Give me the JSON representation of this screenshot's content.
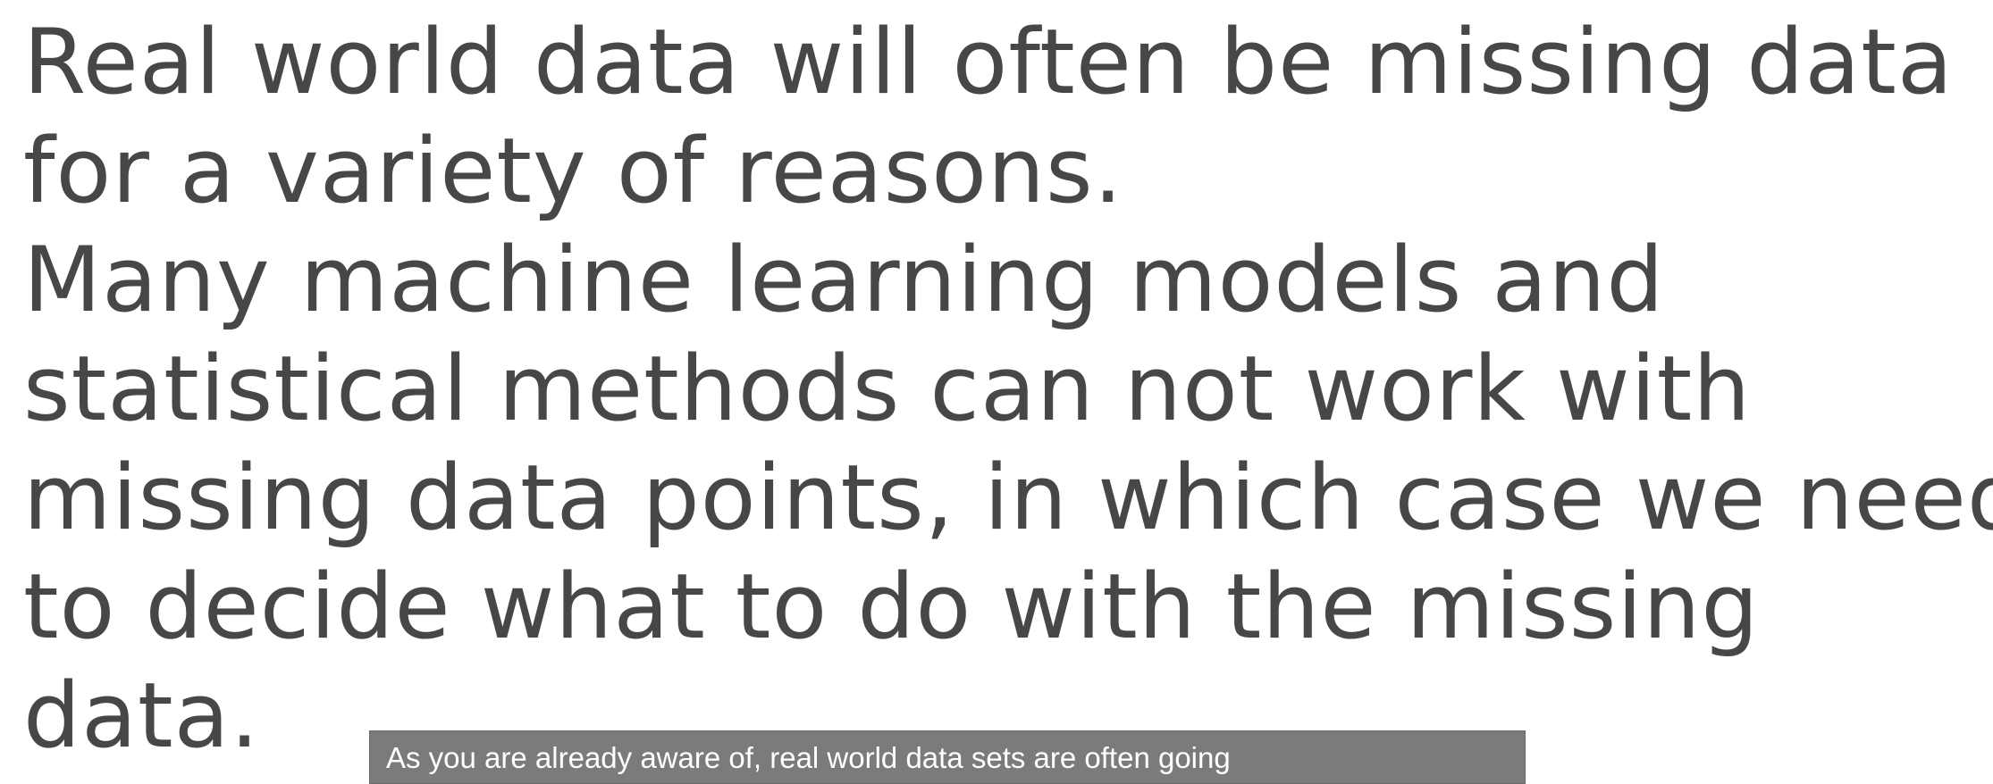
{
  "slide": {
    "paragraph_1": "Real world data will often be missing data\nfor a variety of reasons.",
    "paragraph_2": "Many machine learning models and\nstatistical methods can not work with\nmissing data points, in which case we need\nto decide what to do with the missing\ndata."
  },
  "caption": {
    "text": "As you are already aware of, real world data sets are often going"
  },
  "colors": {
    "text": "#474747",
    "background": "#ffffff",
    "caption_background": "#7b7b7b",
    "caption_text": "#ffffff"
  }
}
